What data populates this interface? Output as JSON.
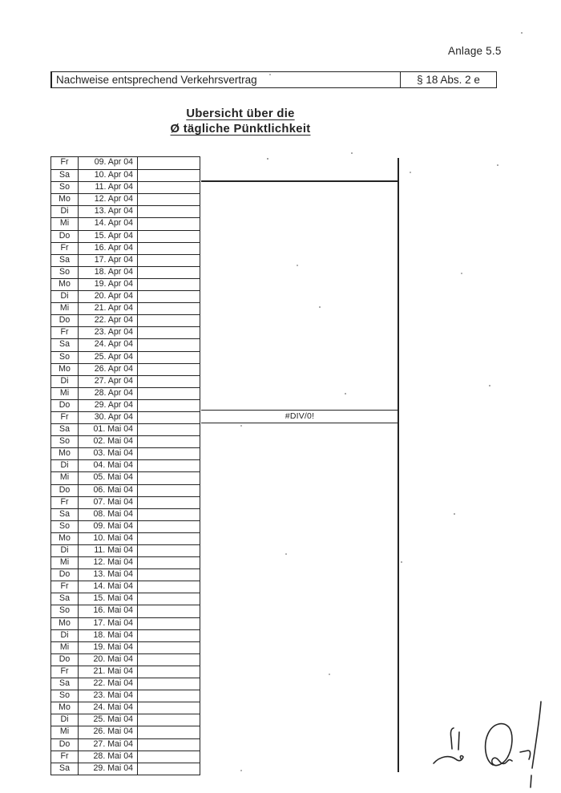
{
  "page": {
    "annex_label": "Anlage 5.5",
    "header": {
      "left": "Nachweise entsprechend Verkehrsvertrag",
      "right": "§ 18 Abs. 2 e"
    },
    "title_line1": "Ubersicht über die",
    "title_line2": "Ø tägliche Pünktlichkeit"
  },
  "chart": {
    "error_label": "#DIV/0!"
  },
  "colors": {
    "ink": "#232323",
    "paper": "#ffffff"
  },
  "table": {
    "columns": [
      "weekday",
      "date",
      "value"
    ],
    "rows": [
      {
        "day": "Fr",
        "date": "09. Apr 04",
        "value": ""
      },
      {
        "day": "Sa",
        "date": "10. Apr 04",
        "value": ""
      },
      {
        "day": "So",
        "date": "11. Apr 04",
        "value": ""
      },
      {
        "day": "Mo",
        "date": "12. Apr 04",
        "value": ""
      },
      {
        "day": "Di",
        "date": "13. Apr 04",
        "value": ""
      },
      {
        "day": "Mi",
        "date": "14. Apr 04",
        "value": ""
      },
      {
        "day": "Do",
        "date": "15. Apr 04",
        "value": ""
      },
      {
        "day": "Fr",
        "date": "16. Apr 04",
        "value": ""
      },
      {
        "day": "Sa",
        "date": "17. Apr 04",
        "value": ""
      },
      {
        "day": "So",
        "date": "18. Apr 04",
        "value": ""
      },
      {
        "day": "Mo",
        "date": "19. Apr 04",
        "value": ""
      },
      {
        "day": "Di",
        "date": "20. Apr 04",
        "value": ""
      },
      {
        "day": "Mi",
        "date": "21. Apr 04",
        "value": ""
      },
      {
        "day": "Do",
        "date": "22. Apr 04",
        "value": ""
      },
      {
        "day": "Fr",
        "date": "23. Apr 04",
        "value": ""
      },
      {
        "day": "Sa",
        "date": "24. Apr 04",
        "value": ""
      },
      {
        "day": "So",
        "date": "25. Apr 04",
        "value": ""
      },
      {
        "day": "Mo",
        "date": "26. Apr 04",
        "value": ""
      },
      {
        "day": "Di",
        "date": "27. Apr 04",
        "value": ""
      },
      {
        "day": "Mi",
        "date": "28. Apr 04",
        "value": ""
      },
      {
        "day": "Do",
        "date": "29. Apr 04",
        "value": ""
      },
      {
        "day": "Fr",
        "date": "30. Apr 04",
        "value": ""
      },
      {
        "day": "Sa",
        "date": "01. Mai 04",
        "value": ""
      },
      {
        "day": "So",
        "date": "02. Mai 04",
        "value": ""
      },
      {
        "day": "Mo",
        "date": "03. Mai 04",
        "value": ""
      },
      {
        "day": "Di",
        "date": "04. Mai 04",
        "value": ""
      },
      {
        "day": "Mi",
        "date": "05. Mai 04",
        "value": ""
      },
      {
        "day": "Do",
        "date": "06. Mai 04",
        "value": ""
      },
      {
        "day": "Fr",
        "date": "07. Mai 04",
        "value": ""
      },
      {
        "day": "Sa",
        "date": "08. Mai 04",
        "value": ""
      },
      {
        "day": "So",
        "date": "09. Mai 04",
        "value": ""
      },
      {
        "day": "Mo",
        "date": "10. Mai 04",
        "value": ""
      },
      {
        "day": "Di",
        "date": "11. Mai 04",
        "value": ""
      },
      {
        "day": "Mi",
        "date": "12. Mai 04",
        "value": ""
      },
      {
        "day": "Do",
        "date": "13. Mai 04",
        "value": ""
      },
      {
        "day": "Fr",
        "date": "14. Mai 04",
        "value": ""
      },
      {
        "day": "Sa",
        "date": "15. Mai 04",
        "value": ""
      },
      {
        "day": "So",
        "date": "16. Mai 04",
        "value": ""
      },
      {
        "day": "Mo",
        "date": "17. Mai 04",
        "value": ""
      },
      {
        "day": "Di",
        "date": "18. Mai 04",
        "value": ""
      },
      {
        "day": "Mi",
        "date": "19. Mai 04",
        "value": ""
      },
      {
        "day": "Do",
        "date": "20. Mai 04",
        "value": ""
      },
      {
        "day": "Fr",
        "date": "21. Mai 04",
        "value": ""
      },
      {
        "day": "Sa",
        "date": "22. Mai 04",
        "value": ""
      },
      {
        "day": "So",
        "date": "23. Mai 04",
        "value": ""
      },
      {
        "day": "Mo",
        "date": "24. Mai 04",
        "value": ""
      },
      {
        "day": "Di",
        "date": "25. Mai 04",
        "value": ""
      },
      {
        "day": "Mi",
        "date": "26. Mai 04",
        "value": ""
      },
      {
        "day": "Do",
        "date": "27. Mai 04",
        "value": ""
      },
      {
        "day": "Fr",
        "date": "28. Mai 04",
        "value": ""
      },
      {
        "day": "Sa",
        "date": "29. Mai 04",
        "value": ""
      }
    ]
  }
}
